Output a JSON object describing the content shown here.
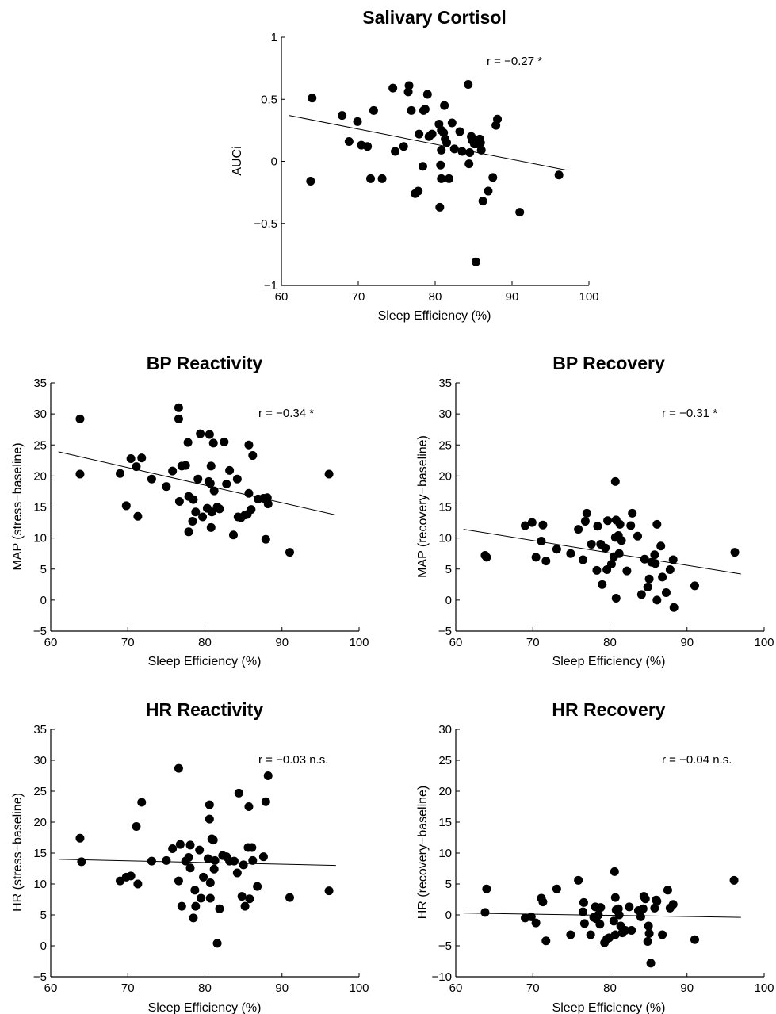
{
  "chart_data": [
    {
      "type": "scatter",
      "title": "Salivary Cortisol",
      "xlabel": "Sleep Efficiency (%)",
      "ylabel": "AUCi",
      "annotation": "r = −0.27 *",
      "xlim": [
        60,
        100
      ],
      "ylim": [
        -1,
        1
      ],
      "xticks": [
        "60",
        "70",
        "80",
        "90",
        "100"
      ],
      "yticks": [
        "−1",
        "−0.5",
        "0",
        "0.5",
        "1"
      ],
      "fit_line": [
        [
          61,
          0.37
        ],
        [
          97,
          -0.07
        ]
      ],
      "points": [
        [
          64,
          0.51
        ],
        [
          63.8,
          -0.16
        ],
        [
          67.9,
          0.37
        ],
        [
          69.9,
          0.32
        ],
        [
          68.8,
          0.16
        ],
        [
          70.4,
          0.13
        ],
        [
          71.2,
          0.12
        ],
        [
          71.6,
          -0.14
        ],
        [
          72,
          0.41
        ],
        [
          73.1,
          -0.14
        ],
        [
          74.5,
          0.59
        ],
        [
          74.8,
          0.08
        ],
        [
          75.9,
          0.12
        ],
        [
          76.6,
          0.61
        ],
        [
          76.5,
          0.56
        ],
        [
          76.9,
          0.41
        ],
        [
          77.4,
          -0.26
        ],
        [
          77.8,
          -0.24
        ],
        [
          77.9,
          0.22
        ],
        [
          78.4,
          -0.04
        ],
        [
          78.5,
          0.41
        ],
        [
          78.7,
          0.42
        ],
        [
          79,
          0.54
        ],
        [
          79.2,
          0.2
        ],
        [
          79.6,
          0.22
        ],
        [
          80.5,
          0.3
        ],
        [
          80.6,
          -0.37
        ],
        [
          80.7,
          -0.03
        ],
        [
          80.8,
          -0.14
        ],
        [
          80.8,
          0.25
        ],
        [
          80.8,
          0.09
        ],
        [
          81.1,
          0.23
        ],
        [
          81.2,
          0.45
        ],
        [
          81.3,
          0.18
        ],
        [
          81.5,
          0.15
        ],
        [
          81.8,
          -0.14
        ],
        [
          82.2,
          0.31
        ],
        [
          82.5,
          0.1
        ],
        [
          83.2,
          0.24
        ],
        [
          83.5,
          0.08
        ],
        [
          84.3,
          0.62
        ],
        [
          84.4,
          -0.02
        ],
        [
          84.5,
          0.07
        ],
        [
          84.7,
          0.2
        ],
        [
          84.8,
          0.17
        ],
        [
          85.1,
          0.14
        ],
        [
          85.3,
          -0.81
        ],
        [
          85.3,
          0.14
        ],
        [
          85.8,
          0.18
        ],
        [
          85.9,
          0.15
        ],
        [
          86,
          0.09
        ],
        [
          86.2,
          -0.32
        ],
        [
          86.9,
          -0.24
        ],
        [
          87.5,
          -0.13
        ],
        [
          87.9,
          0.29
        ],
        [
          88.1,
          0.34
        ],
        [
          91,
          -0.41
        ],
        [
          96.1,
          -0.11
        ]
      ]
    },
    {
      "type": "scatter",
      "title": "BP Reactivity",
      "xlabel": "Sleep Efficiency (%)",
      "ylabel": "MAP (stress−baseline)",
      "annotation": "r = −0.34 *",
      "xlim": [
        60,
        100
      ],
      "ylim": [
        -5,
        35
      ],
      "xticks": [
        "60",
        "70",
        "80",
        "90",
        "100"
      ],
      "yticks": [
        "−5",
        "0",
        "5",
        "10",
        "15",
        "20",
        "25",
        "30",
        "35"
      ],
      "fit_line": [
        [
          61,
          23.9
        ],
        [
          97,
          13.7
        ]
      ],
      "points": [
        [
          63.8,
          29.2
        ],
        [
          63.8,
          20.3
        ],
        [
          69,
          20.4
        ],
        [
          69.8,
          15.2
        ],
        [
          70.4,
          22.8
        ],
        [
          71.1,
          21.5
        ],
        [
          71.3,
          13.5
        ],
        [
          71.8,
          22.9
        ],
        [
          73.1,
          19.5
        ],
        [
          75,
          18.3
        ],
        [
          75.8,
          20.8
        ],
        [
          76.6,
          31
        ],
        [
          76.6,
          29.2
        ],
        [
          76.7,
          15.9
        ],
        [
          77,
          21.6
        ],
        [
          77.5,
          21.7
        ],
        [
          77.8,
          25.4
        ],
        [
          77.9,
          11
        ],
        [
          77.9,
          16.7
        ],
        [
          78.4,
          12.7
        ],
        [
          78.5,
          16.2
        ],
        [
          78.8,
          14.2
        ],
        [
          79.1,
          19.5
        ],
        [
          79.4,
          26.8
        ],
        [
          79.7,
          13.4
        ],
        [
          80.3,
          14.8
        ],
        [
          80.5,
          19.1
        ],
        [
          80.6,
          26.7
        ],
        [
          80.7,
          18.8
        ],
        [
          80.8,
          21.6
        ],
        [
          80.8,
          11.7
        ],
        [
          80.9,
          14.2
        ],
        [
          81.1,
          25.3
        ],
        [
          81.2,
          17.6
        ],
        [
          81.6,
          15
        ],
        [
          81.9,
          14.7
        ],
        [
          82.5,
          25.5
        ],
        [
          82.8,
          18.7
        ],
        [
          83.2,
          20.9
        ],
        [
          83.7,
          10.5
        ],
        [
          84.2,
          19.5
        ],
        [
          84.3,
          13.4
        ],
        [
          84.7,
          13.3
        ],
        [
          85.2,
          13.7
        ],
        [
          85.5,
          13.8
        ],
        [
          85.7,
          17.2
        ],
        [
          85.7,
          25
        ],
        [
          86,
          14.6
        ],
        [
          86.2,
          23.3
        ],
        [
          86.9,
          16.3
        ],
        [
          87.6,
          16.4
        ],
        [
          87.9,
          9.8
        ],
        [
          88.1,
          16.5
        ],
        [
          88.2,
          15.5
        ],
        [
          91,
          7.7
        ],
        [
          96.1,
          20.3
        ]
      ]
    },
    {
      "type": "scatter",
      "title": "BP Recovery",
      "xlabel": "Sleep Efficiency (%)",
      "ylabel": "MAP (recovery−baseline)",
      "annotation": "r = −0.31 *",
      "xlim": [
        60,
        100
      ],
      "ylim": [
        -5,
        35
      ],
      "xticks": [
        "60",
        "70",
        "80",
        "90",
        "100"
      ],
      "yticks": [
        "−5",
        "0",
        "5",
        "10",
        "15",
        "20",
        "25",
        "30",
        "35"
      ],
      "fit_line": [
        [
          61,
          11.4
        ],
        [
          97,
          4.2
        ]
      ],
      "points": [
        [
          63.8,
          7.2
        ],
        [
          64,
          6.9
        ],
        [
          69,
          12
        ],
        [
          69.9,
          12.5
        ],
        [
          70.4,
          6.9
        ],
        [
          71.1,
          9.5
        ],
        [
          71.3,
          12.1
        ],
        [
          71.7,
          6.3
        ],
        [
          73.1,
          8.2
        ],
        [
          74.9,
          7.5
        ],
        [
          75.9,
          11.4
        ],
        [
          76.5,
          6.5
        ],
        [
          76.8,
          12.7
        ],
        [
          77,
          14
        ],
        [
          77.6,
          9
        ],
        [
          78.3,
          4.8
        ],
        [
          78.4,
          11.9
        ],
        [
          78.8,
          9
        ],
        [
          79,
          2.5
        ],
        [
          79.4,
          8.4
        ],
        [
          79.6,
          4.9
        ],
        [
          79.7,
          12.8
        ],
        [
          80.2,
          5.8
        ],
        [
          80.5,
          7
        ],
        [
          80.7,
          19.1
        ],
        [
          80.7,
          10.1
        ],
        [
          80.8,
          0.3
        ],
        [
          80.8,
          12.9
        ],
        [
          81.1,
          10.4
        ],
        [
          81.2,
          7.5
        ],
        [
          81.3,
          12.2
        ],
        [
          81.5,
          9.6
        ],
        [
          82.2,
          4.7
        ],
        [
          82.7,
          12
        ],
        [
          82.9,
          14
        ],
        [
          83.6,
          10.3
        ],
        [
          84.1,
          0.9
        ],
        [
          84.5,
          6.6
        ],
        [
          84.9,
          2.1
        ],
        [
          85.1,
          3.4
        ],
        [
          85.4,
          6.1
        ],
        [
          85.8,
          7.3
        ],
        [
          85.9,
          5.9
        ],
        [
          86.1,
          0
        ],
        [
          86.1,
          12.2
        ],
        [
          86.6,
          8.7
        ],
        [
          86.8,
          3.7
        ],
        [
          87.3,
          1.2
        ],
        [
          87.8,
          4.9
        ],
        [
          88.2,
          6.5
        ],
        [
          88.3,
          -1.2
        ],
        [
          91,
          2.3
        ],
        [
          96.2,
          7.7
        ]
      ]
    },
    {
      "type": "scatter",
      "title": "HR Reactivity",
      "xlabel": "Sleep Efficiency (%)",
      "ylabel": "HR (stress−baseline)",
      "annotation": "r = −0.03 n.s.",
      "xlim": [
        60,
        100
      ],
      "ylim": [
        -5,
        35
      ],
      "xticks": [
        "60",
        "70",
        "80",
        "90",
        "100"
      ],
      "yticks": [
        "−5",
        "0",
        "5",
        "10",
        "15",
        "20",
        "25",
        "30",
        "35"
      ],
      "fit_line": [
        [
          61,
          14
        ],
        [
          97,
          13
        ]
      ],
      "points": [
        [
          63.8,
          17.4
        ],
        [
          64,
          13.6
        ],
        [
          69,
          10.5
        ],
        [
          69.8,
          11.1
        ],
        [
          70.4,
          11.3
        ],
        [
          71.1,
          19.3
        ],
        [
          71.3,
          10
        ],
        [
          71.8,
          23.2
        ],
        [
          73.1,
          13.7
        ],
        [
          75,
          13.8
        ],
        [
          75.8,
          15.7
        ],
        [
          76.6,
          28.7
        ],
        [
          76.6,
          10.5
        ],
        [
          76.8,
          16.4
        ],
        [
          77,
          6.4
        ],
        [
          77.5,
          13.7
        ],
        [
          77.9,
          14.3
        ],
        [
          78.1,
          12.6
        ],
        [
          78.1,
          16.3
        ],
        [
          78.5,
          4.5
        ],
        [
          78.7,
          9
        ],
        [
          78.8,
          6.4
        ],
        [
          79.3,
          15.5
        ],
        [
          79.5,
          7.7
        ],
        [
          79.8,
          11.1
        ],
        [
          80.4,
          14.1
        ],
        [
          80.6,
          22.8
        ],
        [
          80.6,
          20.5
        ],
        [
          80.7,
          10.2
        ],
        [
          80.7,
          7.7
        ],
        [
          80.9,
          17.3
        ],
        [
          81.1,
          17.1
        ],
        [
          81.2,
          12.4
        ],
        [
          81.3,
          13.8
        ],
        [
          81.6,
          0.4
        ],
        [
          81.9,
          6
        ],
        [
          82.3,
          14.6
        ],
        [
          82.8,
          14.4
        ],
        [
          83.2,
          13.7
        ],
        [
          83.8,
          13.7
        ],
        [
          84.2,
          11.8
        ],
        [
          84.4,
          24.7
        ],
        [
          84.8,
          8
        ],
        [
          85,
          13.1
        ],
        [
          85.2,
          6.4
        ],
        [
          85.6,
          15.9
        ],
        [
          85.7,
          22.5
        ],
        [
          85.8,
          7.6
        ],
        [
          86.1,
          15.9
        ],
        [
          86.2,
          13.8
        ],
        [
          86.8,
          9.6
        ],
        [
          87.6,
          14.4
        ],
        [
          87.9,
          23.3
        ],
        [
          88.2,
          27.5
        ],
        [
          91,
          7.8
        ],
        [
          96.1,
          8.9
        ]
      ]
    },
    {
      "type": "scatter",
      "title": "HR Recovery",
      "xlabel": "Sleep Efficiency (%)",
      "ylabel": "HR (recovery−baseline)",
      "annotation": "r = −0.04 n.s.",
      "xlim": [
        60,
        100
      ],
      "ylim": [
        -10,
        30
      ],
      "xticks": [
        "60",
        "70",
        "80",
        "90",
        "100"
      ],
      "yticks": [
        "−10",
        "−5",
        "0",
        "5",
        "10",
        "15",
        "20",
        "25",
        "30"
      ],
      "fit_line": [
        [
          61,
          0.3
        ],
        [
          97,
          -0.4
        ]
      ],
      "points": [
        [
          63.8,
          0.4
        ],
        [
          64,
          4.2
        ],
        [
          69,
          -0.5
        ],
        [
          69.8,
          -0.3
        ],
        [
          70.4,
          -1.3
        ],
        [
          71.1,
          2.7
        ],
        [
          71.3,
          2.1
        ],
        [
          71.7,
          -4.2
        ],
        [
          73.1,
          4.2
        ],
        [
          74.9,
          -3.2
        ],
        [
          75.9,
          5.6
        ],
        [
          76.5,
          0.5
        ],
        [
          76.6,
          2
        ],
        [
          76.7,
          -1.4
        ],
        [
          77.5,
          -3.2
        ],
        [
          77.9,
          -0.4
        ],
        [
          78.1,
          1.3
        ],
        [
          78.2,
          -0.6
        ],
        [
          78.5,
          0
        ],
        [
          78.7,
          -1.5
        ],
        [
          78.8,
          1.2
        ],
        [
          79.3,
          -4.5
        ],
        [
          79.6,
          -3.9
        ],
        [
          79.9,
          -3.7
        ],
        [
          80.5,
          -1
        ],
        [
          80.6,
          7
        ],
        [
          80.7,
          -3.2
        ],
        [
          80.7,
          2.8
        ],
        [
          80.8,
          0.8
        ],
        [
          81.1,
          1
        ],
        [
          81.2,
          0
        ],
        [
          81.4,
          -1.8
        ],
        [
          81.6,
          -2.9
        ],
        [
          82,
          -2.5
        ],
        [
          82.5,
          1.3
        ],
        [
          82.8,
          -2.5
        ],
        [
          83.7,
          0.7
        ],
        [
          84,
          -0.3
        ],
        [
          84.3,
          1
        ],
        [
          84.4,
          3
        ],
        [
          84.6,
          2.6
        ],
        [
          84.9,
          -4.3
        ],
        [
          85,
          -1.8
        ],
        [
          85.1,
          -3
        ],
        [
          85.3,
          -7.8
        ],
        [
          85.8,
          1.1
        ],
        [
          86,
          2.4
        ],
        [
          86.1,
          2.2
        ],
        [
          86.8,
          -3.2
        ],
        [
          87.5,
          4
        ],
        [
          87.8,
          1.1
        ],
        [
          88.2,
          1.7
        ],
        [
          91,
          -4
        ],
        [
          96.1,
          5.6
        ]
      ]
    }
  ]
}
